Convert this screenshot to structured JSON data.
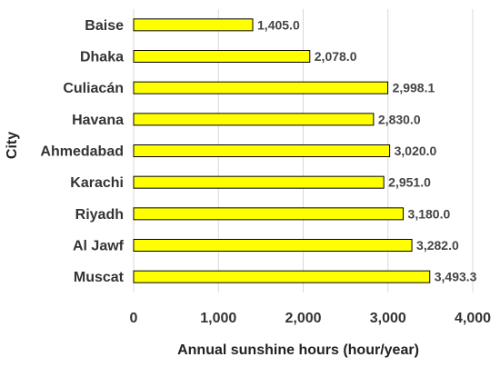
{
  "chart_data": {
    "type": "bar",
    "orientation": "horizontal",
    "categories": [
      "Baise",
      "Dhaka",
      "Culiacán",
      "Havana",
      "Ahmedabad",
      "Karachi",
      "Riyadh",
      "Al Jawf",
      "Muscat"
    ],
    "values": [
      1405.0,
      2078.0,
      2998.1,
      2830.0,
      3020.0,
      2951.0,
      3180.0,
      3282.0,
      3493.3
    ],
    "data_labels": [
      "1,405.0",
      "2,078.0",
      "2,998.1",
      "2,830.0",
      "3,020.0",
      "2,951.0",
      "3,180.0",
      "3,282.0",
      "3,493.3"
    ],
    "xlabel": "Annual sunshine hours (hour/year)",
    "ylabel": "City",
    "xlim": [
      0,
      4000
    ],
    "x_ticks": [
      0,
      1000,
      2000,
      3000,
      4000
    ],
    "x_tick_labels": [
      "0",
      "1,000",
      "2,000",
      "3,000",
      "4,000"
    ],
    "grid": "vertical",
    "legend": "none",
    "bar_color": "#FFFF00",
    "bar_edge_color": "#000000",
    "grid_color": "#D9D9D9"
  }
}
